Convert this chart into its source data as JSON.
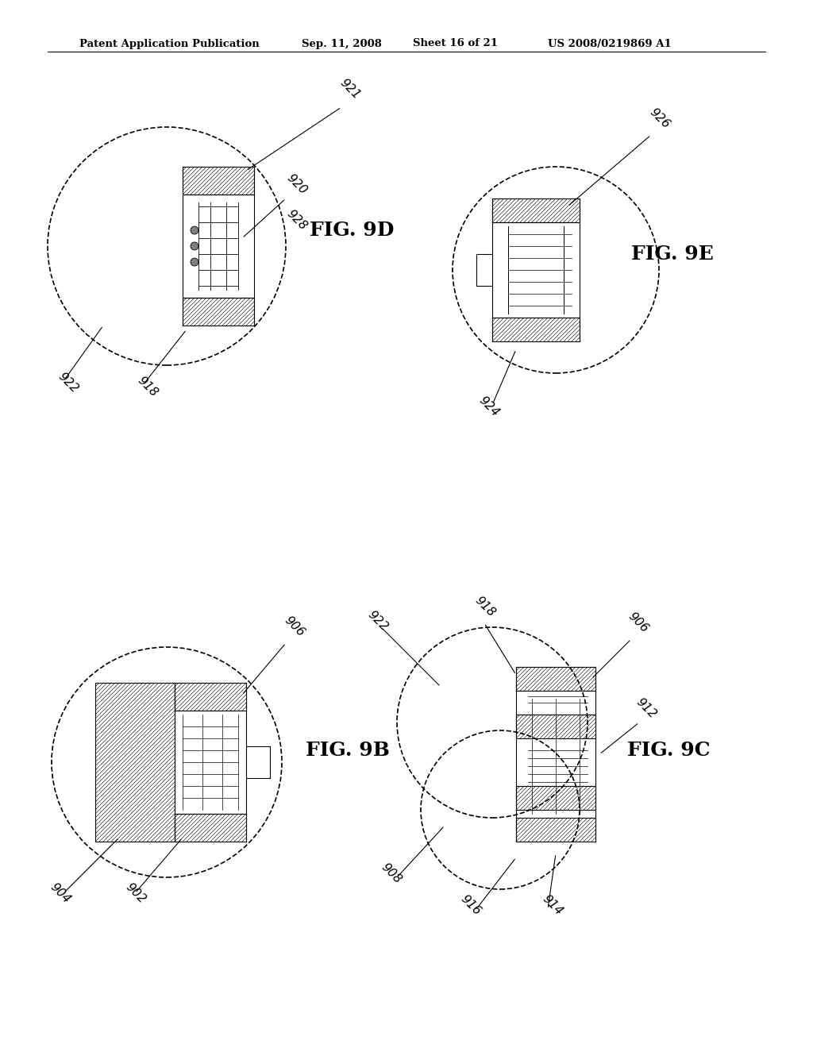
{
  "page_width": 10.24,
  "page_height": 13.2,
  "background_color": "#ffffff",
  "header_text": "Patent Application Publication",
  "header_date": "Sep. 11, 2008",
  "header_sheet": "Sheet 16 of 21",
  "header_patent": "US 2008/0219869 A1",
  "fig9d_label": "FIG. 9D",
  "fig9e_label": "FIG. 9E",
  "fig9b_label": "FIG. 9B",
  "fig9c_label": "FIG. 9C",
  "fig9d_refs": [
    "921",
    "920",
    "928",
    "922",
    "918"
  ],
  "fig9e_refs": [
    "926",
    "924"
  ],
  "fig9b_refs": [
    "906",
    "904",
    "902"
  ],
  "fig9c_refs": [
    "922",
    "918",
    "906",
    "912",
    "908",
    "916",
    "914"
  ]
}
